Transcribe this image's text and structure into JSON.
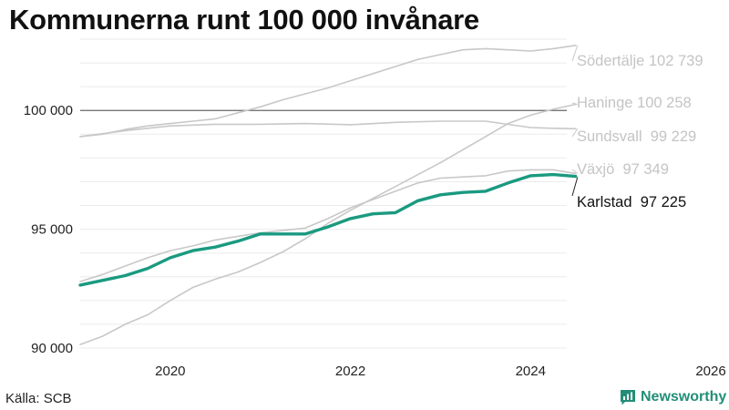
{
  "header": {
    "title": "Kommunerna runt 100 000 invånare"
  },
  "footer": {
    "source": "Källa: SCB",
    "brand": "Newsworthy"
  },
  "colors": {
    "highlight": "#1a9a80",
    "other": "#c8c8c8",
    "reference_line": "#666666",
    "label_other": "#c4c4c4",
    "brand": "#238e78"
  },
  "chart_data": {
    "type": "line",
    "title": "Kommunerna runt 100 000 invånare",
    "xlabel": "",
    "ylabel": "",
    "xlim": [
      2019.0,
      2026.0
    ],
    "ylim": [
      90000,
      103000
    ],
    "x_ticks": [
      {
        "value": 2020,
        "label": "2020"
      },
      {
        "value": 2022,
        "label": "2022"
      },
      {
        "value": 2024,
        "label": "2024"
      },
      {
        "value": 2026,
        "label": "2026"
      }
    ],
    "y_ticks": [
      {
        "value": 90000,
        "label": "90 000"
      },
      {
        "value": 95000,
        "label": "95 000"
      },
      {
        "value": 100000,
        "label": "100 000"
      }
    ],
    "reference_line": 100000,
    "grid": true,
    "series": [
      {
        "name": "Södertälje",
        "end_label": "Södertälje 102 739",
        "highlight": false,
        "points": [
          [
            2019.0,
            98900
          ],
          [
            2019.25,
            99000
          ],
          [
            2019.5,
            99200
          ],
          [
            2019.75,
            99350
          ],
          [
            2020.0,
            99450
          ],
          [
            2020.25,
            99550
          ],
          [
            2020.5,
            99650
          ],
          [
            2020.75,
            99900
          ],
          [
            2021.0,
            100150
          ],
          [
            2021.25,
            100450
          ],
          [
            2021.5,
            100700
          ],
          [
            2021.75,
            100950
          ],
          [
            2022.0,
            101250
          ],
          [
            2022.25,
            101550
          ],
          [
            2022.5,
            101850
          ],
          [
            2022.75,
            102150
          ],
          [
            2023.0,
            102350
          ],
          [
            2023.25,
            102550
          ],
          [
            2023.5,
            102600
          ],
          [
            2023.75,
            102550
          ],
          [
            2024.0,
            102500
          ],
          [
            2024.25,
            102600
          ],
          [
            2024.5,
            102739
          ]
        ]
      },
      {
        "name": "Haninge",
        "end_label": "Haninge 100 258",
        "highlight": false,
        "points": [
          [
            2019.0,
            90150
          ],
          [
            2019.25,
            90500
          ],
          [
            2019.5,
            91000
          ],
          [
            2019.75,
            91400
          ],
          [
            2020.0,
            92000
          ],
          [
            2020.25,
            92550
          ],
          [
            2020.5,
            92900
          ],
          [
            2020.75,
            93200
          ],
          [
            2021.0,
            93600
          ],
          [
            2021.25,
            94050
          ],
          [
            2021.5,
            94600
          ],
          [
            2021.75,
            95250
          ],
          [
            2022.0,
            95800
          ],
          [
            2022.25,
            96300
          ],
          [
            2022.5,
            96800
          ],
          [
            2022.75,
            97300
          ],
          [
            2023.0,
            97800
          ],
          [
            2023.25,
            98350
          ],
          [
            2023.5,
            98900
          ],
          [
            2023.75,
            99450
          ],
          [
            2024.0,
            99800
          ],
          [
            2024.25,
            100050
          ],
          [
            2024.5,
            100258
          ]
        ]
      },
      {
        "name": "Sundsvall",
        "end_label": "Sundsvall  99 229",
        "highlight": false,
        "points": [
          [
            2019.0,
            98900
          ],
          [
            2019.5,
            99150
          ],
          [
            2020.0,
            99350
          ],
          [
            2020.5,
            99420
          ],
          [
            2021.0,
            99420
          ],
          [
            2021.5,
            99450
          ],
          [
            2022.0,
            99400
          ],
          [
            2022.5,
            99500
          ],
          [
            2023.0,
            99550
          ],
          [
            2023.5,
            99550
          ],
          [
            2024.0,
            99280
          ],
          [
            2024.25,
            99250
          ],
          [
            2024.5,
            99229
          ]
        ]
      },
      {
        "name": "Växjö",
        "end_label": "Växjö  97 349",
        "highlight": false,
        "points": [
          [
            2019.0,
            92800
          ],
          [
            2019.25,
            93100
          ],
          [
            2019.5,
            93450
          ],
          [
            2019.75,
            93800
          ],
          [
            2020.0,
            94100
          ],
          [
            2020.25,
            94300
          ],
          [
            2020.5,
            94550
          ],
          [
            2020.75,
            94700
          ],
          [
            2021.0,
            94850
          ],
          [
            2021.25,
            94950
          ],
          [
            2021.5,
            95050
          ],
          [
            2021.75,
            95450
          ],
          [
            2022.0,
            95900
          ],
          [
            2022.25,
            96250
          ],
          [
            2022.5,
            96600
          ],
          [
            2022.75,
            96950
          ],
          [
            2023.0,
            97150
          ],
          [
            2023.25,
            97200
          ],
          [
            2023.5,
            97250
          ],
          [
            2023.75,
            97450
          ],
          [
            2024.0,
            97500
          ],
          [
            2024.25,
            97500
          ],
          [
            2024.5,
            97349
          ]
        ]
      },
      {
        "name": "Karlstad",
        "end_label": "Karlstad  97 225",
        "highlight": true,
        "points": [
          [
            2019.0,
            92650
          ],
          [
            2019.25,
            92850
          ],
          [
            2019.5,
            93050
          ],
          [
            2019.75,
            93350
          ],
          [
            2020.0,
            93800
          ],
          [
            2020.25,
            94100
          ],
          [
            2020.5,
            94250
          ],
          [
            2020.75,
            94500
          ],
          [
            2021.0,
            94800
          ],
          [
            2021.25,
            94800
          ],
          [
            2021.5,
            94800
          ],
          [
            2021.75,
            95100
          ],
          [
            2022.0,
            95450
          ],
          [
            2022.25,
            95650
          ],
          [
            2022.5,
            95700
          ],
          [
            2022.75,
            96200
          ],
          [
            2023.0,
            96450
          ],
          [
            2023.25,
            96550
          ],
          [
            2023.5,
            96600
          ],
          [
            2023.75,
            96950
          ],
          [
            2024.0,
            97250
          ],
          [
            2024.25,
            97300
          ],
          [
            2024.5,
            97225
          ]
        ]
      }
    ]
  }
}
